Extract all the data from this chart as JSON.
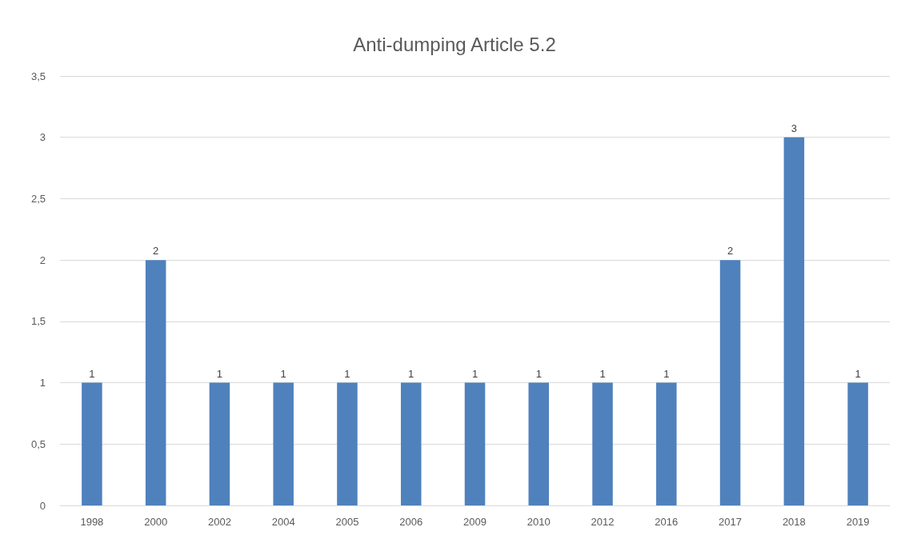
{
  "chart_data": {
    "type": "bar",
    "title": "Anti-dumping Article 5.2",
    "categories": [
      "1998",
      "2000",
      "2002",
      "2004",
      "2005",
      "2006",
      "2009",
      "2010",
      "2012",
      "2016",
      "2017",
      "2018",
      "2019"
    ],
    "values": [
      1,
      2,
      1,
      1,
      1,
      1,
      1,
      1,
      1,
      1,
      2,
      3,
      1
    ],
    "color": "#4f81bd",
    "ylim": [
      0,
      3.5
    ],
    "yticks": [
      0,
      {
        "value": 0.5,
        "label": "0,5"
      },
      1,
      {
        "value": 1.5,
        "label": "1,5"
      },
      2,
      {
        "value": 2.5,
        "label": "2,5"
      },
      3,
      {
        "value": 3.5,
        "label": "3,5"
      }
    ],
    "grid": "y",
    "data_labels": true
  }
}
